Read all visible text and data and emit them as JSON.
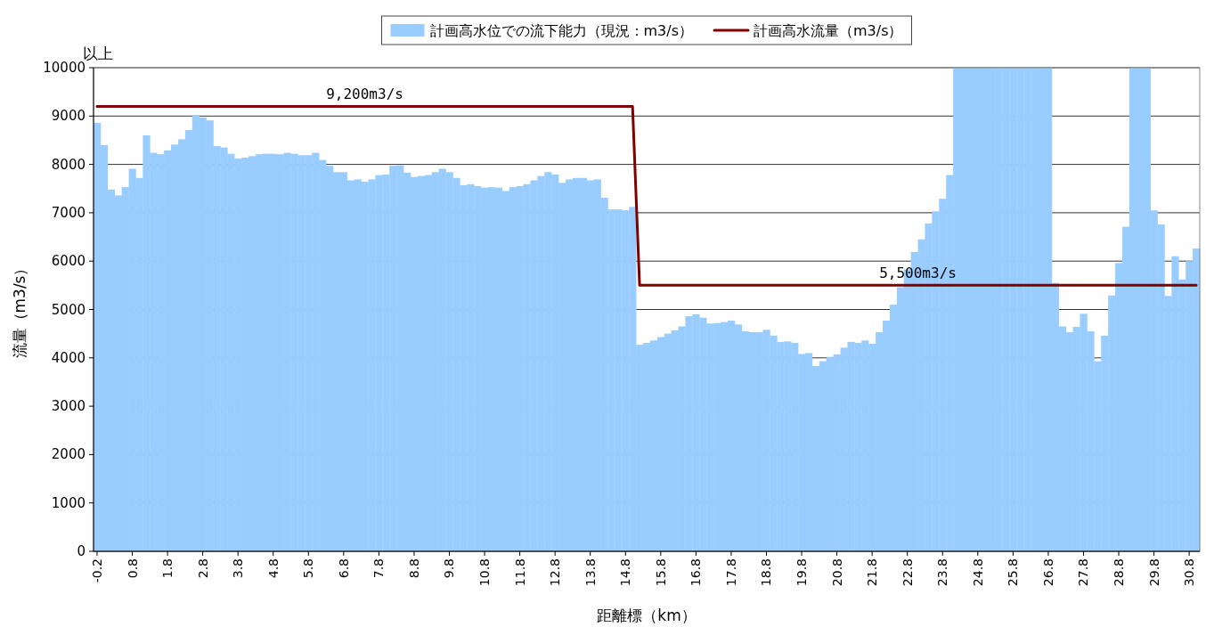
{
  "chart_data": {
    "type": "bar",
    "xlabel": "距離標（km）",
    "ylabel": "流量（m3/s）",
    "categories": [
      "-0.2",
      null,
      null,
      null,
      null,
      "0.8",
      null,
      null,
      null,
      null,
      "1.8",
      null,
      null,
      null,
      null,
      "2.8",
      null,
      null,
      null,
      null,
      "3.8",
      null,
      null,
      null,
      null,
      "4.8",
      null,
      null,
      null,
      null,
      "5.8",
      null,
      null,
      null,
      null,
      "6.8",
      null,
      null,
      null,
      null,
      "7.8",
      null,
      null,
      null,
      null,
      "8.8",
      null,
      null,
      null,
      null,
      "9.8",
      null,
      null,
      null,
      null,
      "10.8",
      null,
      null,
      null,
      null,
      "11.8",
      null,
      null,
      null,
      null,
      "12.8",
      null,
      null,
      null,
      null,
      "13.8",
      null,
      null,
      null,
      null,
      "14.8",
      null,
      null,
      null,
      null,
      "15.8",
      null,
      null,
      null,
      null,
      "16.8",
      null,
      null,
      null,
      null,
      "17.8",
      null,
      null,
      null,
      null,
      "18.8",
      null,
      null,
      null,
      null,
      "19.8",
      null,
      null,
      null,
      null,
      "20.8",
      null,
      null,
      null,
      null,
      "21.8",
      null,
      null,
      null,
      null,
      "22.8",
      null,
      null,
      null,
      null,
      "23.8",
      null,
      null,
      null,
      null,
      "24.8",
      null,
      null,
      null,
      null,
      "25.8",
      null,
      null,
      null,
      null,
      "26.8",
      null,
      null,
      null,
      null,
      "27.8",
      null,
      null,
      null,
      null,
      "28.8",
      null,
      null,
      null,
      null,
      "29.8",
      null,
      null,
      null,
      null,
      "30.8",
      null
    ],
    "series": [
      {
        "name": "計画高水位での流下能力（現況：m3/s）",
        "color": "#99ccff",
        "values": [
          8860,
          8400,
          7480,
          7360,
          7530,
          7910,
          7720,
          8600,
          8240,
          8210,
          8290,
          8410,
          8520,
          8710,
          9020,
          8970,
          8910,
          8380,
          8350,
          8220,
          8120,
          8140,
          8170,
          8210,
          8220,
          8220,
          8210,
          8240,
          8220,
          8190,
          8190,
          8240,
          8090,
          7970,
          7840,
          7840,
          7670,
          7690,
          7640,
          7690,
          7780,
          7790,
          7970,
          7980,
          7830,
          7740,
          7760,
          7780,
          7840,
          7910,
          7840,
          7720,
          7570,
          7590,
          7550,
          7520,
          7530,
          7520,
          7450,
          7530,
          7550,
          7590,
          7670,
          7760,
          7840,
          7790,
          7620,
          7690,
          7720,
          7720,
          7670,
          7690,
          7310,
          7070,
          7070,
          7050,
          7120,
          4270,
          4310,
          4360,
          4430,
          4500,
          4570,
          4650,
          4860,
          4900,
          4830,
          4710,
          4720,
          4740,
          4770,
          4690,
          4550,
          4530,
          4530,
          4580,
          4460,
          4330,
          4340,
          4310,
          4080,
          4100,
          3830,
          3930,
          4020,
          4070,
          4210,
          4330,
          4310,
          4360,
          4290,
          4530,
          4770,
          5100,
          5460,
          5830,
          6190,
          6450,
          6780,
          7030,
          7290,
          7780,
          10000,
          10000,
          10000,
          10000,
          10000,
          10000,
          10000,
          10000,
          10000,
          10000,
          10000,
          10000,
          10000,
          10000,
          5550,
          4650,
          4530,
          4640,
          4910,
          4550,
          3930,
          4460,
          5290,
          5960,
          6710,
          10000,
          10000,
          10000,
          7050,
          6760,
          5280,
          6100,
          5620,
          6000,
          6260
        ]
      },
      {
        "name": "計画高水流量（m3/s）",
        "type": "line",
        "color": "#800000",
        "values": [
          9200,
          9200,
          9200,
          9200,
          9200,
          9200,
          9200,
          9200,
          9200,
          9200,
          9200,
          9200,
          9200,
          9200,
          9200,
          9200,
          9200,
          9200,
          9200,
          9200,
          9200,
          9200,
          9200,
          9200,
          9200,
          9200,
          9200,
          9200,
          9200,
          9200,
          9200,
          9200,
          9200,
          9200,
          9200,
          9200,
          9200,
          9200,
          9200,
          9200,
          9200,
          9200,
          9200,
          9200,
          9200,
          9200,
          9200,
          9200,
          9200,
          9200,
          9200,
          9200,
          9200,
          9200,
          9200,
          9200,
          9200,
          9200,
          9200,
          9200,
          9200,
          9200,
          9200,
          9200,
          9200,
          9200,
          9200,
          9200,
          9200,
          9200,
          9200,
          9200,
          9200,
          9200,
          9200,
          9200,
          9200,
          5500,
          5500,
          5500,
          5500,
          5500,
          5500,
          5500,
          5500,
          5500,
          5500,
          5500,
          5500,
          5500,
          5500,
          5500,
          5500,
          5500,
          5500,
          5500,
          5500,
          5500,
          5500,
          5500,
          5500,
          5500,
          5500,
          5500,
          5500,
          5500,
          5500,
          5500,
          5500,
          5500,
          5500,
          5500,
          5500,
          5500,
          5500,
          5500,
          5500,
          5500,
          5500,
          5500,
          5500,
          5500,
          5500,
          5500,
          5500,
          5500,
          5500,
          5500,
          5500,
          5500,
          5500,
          5500,
          5500,
          5500,
          5500,
          5500,
          5500,
          5500,
          5500,
          5500,
          5500,
          5500,
          5500,
          5500,
          5500,
          5500,
          5500,
          5500,
          5500,
          5500,
          5500,
          5500,
          5500,
          5500,
          5500,
          5500,
          5500
        ]
      }
    ],
    "ylim": [
      0,
      10000
    ],
    "yticks": [
      0,
      1000,
      2000,
      3000,
      4000,
      5000,
      6000,
      7000,
      8000,
      9000,
      10000
    ],
    "grid": "y",
    "legend": "top",
    "annotations": [
      "以上",
      {
        "text": "9,200m3/s",
        "y": 9200
      },
      {
        "text": "5,500m3/s",
        "y": 5500
      }
    ]
  }
}
